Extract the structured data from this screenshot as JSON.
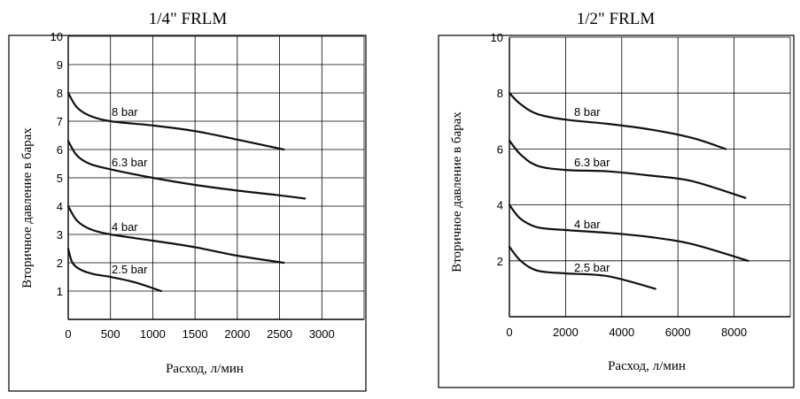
{
  "chart_data": [
    {
      "type": "line",
      "title": "1/4\" FRLM",
      "xlabel": "Расход, л/мин",
      "ylabel": "Вторичное давление в барах",
      "xlim": [
        0,
        3500
      ],
      "ylim": [
        0,
        10
      ],
      "x_ticks": [
        "0",
        "500",
        "1000",
        "1500",
        "2000",
        "2500",
        "3000"
      ],
      "x_tick_values": [
        0,
        500,
        1000,
        1500,
        2000,
        2500,
        3000
      ],
      "y_ticks": [
        "1",
        "2",
        "3",
        "4",
        "5",
        "6",
        "7",
        "8",
        "9",
        "10"
      ],
      "y_tick_values": [
        1,
        2,
        3,
        4,
        5,
        6,
        7,
        8,
        9,
        10
      ],
      "grid": true,
      "series": [
        {
          "name": "8 bar",
          "x": [
            0,
            100,
            250,
            500,
            1000,
            1500,
            2000,
            2550
          ],
          "y": [
            8.0,
            7.5,
            7.2,
            7.0,
            6.85,
            6.65,
            6.35,
            6.0
          ]
        },
        {
          "name": "6.3 bar",
          "x": [
            0,
            100,
            250,
            500,
            1000,
            1500,
            2000,
            2500,
            2800
          ],
          "y": [
            6.3,
            5.8,
            5.5,
            5.3,
            5.0,
            4.75,
            4.55,
            4.38,
            4.27
          ]
        },
        {
          "name": "4 bar",
          "x": [
            0,
            100,
            250,
            500,
            1000,
            1500,
            2000,
            2550
          ],
          "y": [
            4.0,
            3.5,
            3.2,
            3.0,
            2.78,
            2.55,
            2.25,
            2.0
          ]
        },
        {
          "name": "2.5 bar",
          "x": [
            0,
            50,
            150,
            300,
            500,
            800,
            1100
          ],
          "y": [
            2.5,
            2.0,
            1.75,
            1.6,
            1.5,
            1.3,
            1.0
          ]
        }
      ]
    },
    {
      "type": "line",
      "title": "1/2\" FRLM",
      "xlabel": "Расход, л/мин",
      "ylabel": "Вторичное давление в барах",
      "xlim": [
        0,
        10000
      ],
      "ylim": [
        0,
        10
      ],
      "x_ticks": [
        "0",
        "2000",
        "4000",
        "6000",
        "8000"
      ],
      "x_tick_values": [
        0,
        2000,
        4000,
        6000,
        8000
      ],
      "y_ticks": [
        "2",
        "4",
        "6",
        "8",
        "10"
      ],
      "y_tick_values": [
        2,
        4,
        6,
        8,
        10
      ],
      "grid": true,
      "series": [
        {
          "name": "8 bar",
          "x": [
            0,
            400,
            1000,
            2000,
            3500,
            5000,
            6500,
            7700
          ],
          "y": [
            8.0,
            7.6,
            7.25,
            7.05,
            6.9,
            6.7,
            6.4,
            6.0
          ]
        },
        {
          "name": "6.3 bar",
          "x": [
            0,
            400,
            1000,
            2000,
            3500,
            5000,
            6500,
            8400
          ],
          "y": [
            6.3,
            5.8,
            5.4,
            5.25,
            5.2,
            5.05,
            4.85,
            4.25
          ]
        },
        {
          "name": "4 bar",
          "x": [
            0,
            400,
            1000,
            2000,
            3500,
            5000,
            6500,
            8500
          ],
          "y": [
            4.0,
            3.5,
            3.2,
            3.1,
            3.0,
            2.85,
            2.6,
            2.0
          ]
        },
        {
          "name": "2.5 bar",
          "x": [
            0,
            400,
            1000,
            2000,
            3500,
            5200
          ],
          "y": [
            2.5,
            2.0,
            1.65,
            1.55,
            1.45,
            1.0
          ]
        }
      ]
    }
  ]
}
